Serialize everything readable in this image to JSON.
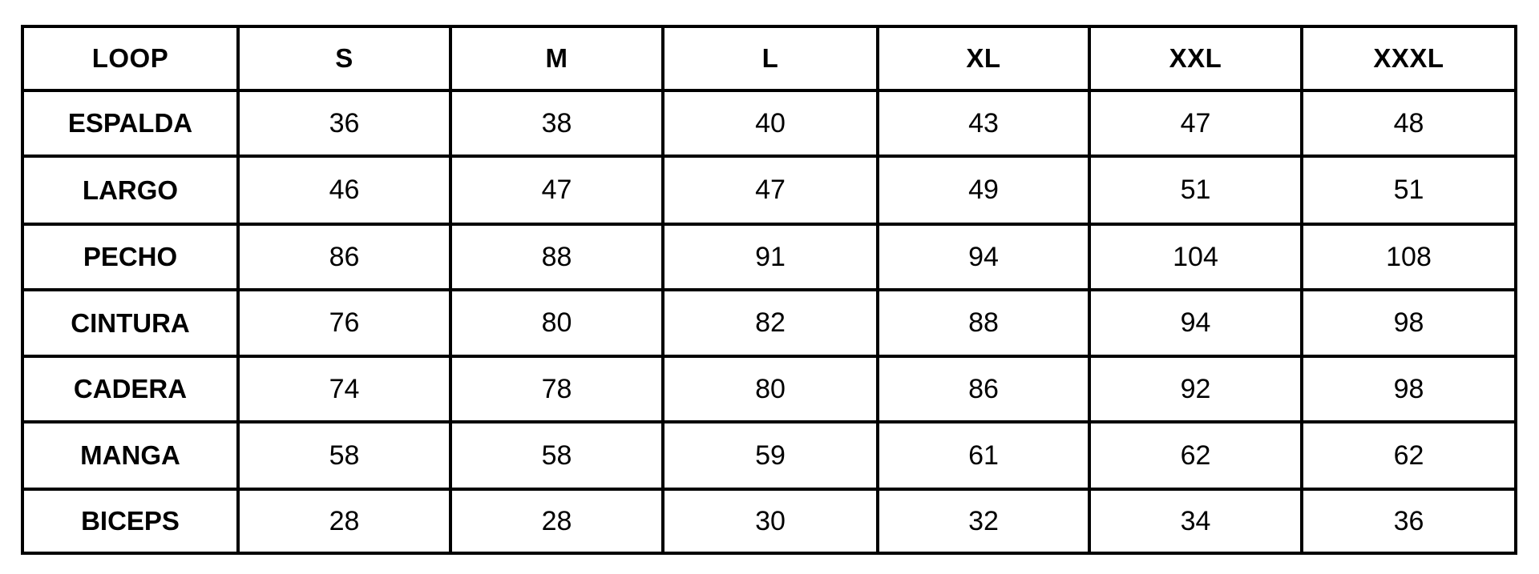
{
  "table": {
    "headers": [
      "LOOP",
      "S",
      "M",
      "L",
      "XL",
      "XXL",
      "XXXL"
    ],
    "rows": [
      {
        "label": "ESPALDA",
        "values": [
          "36",
          "38",
          "40",
          "43",
          "47",
          "48"
        ]
      },
      {
        "label": "LARGO",
        "values": [
          "46",
          "47",
          "47",
          "49",
          "51",
          "51"
        ]
      },
      {
        "label": "PECHO",
        "values": [
          "86",
          "88",
          "91",
          "94",
          "104",
          "108"
        ]
      },
      {
        "label": "CINTURA",
        "values": [
          "76",
          "80",
          "82",
          "88",
          "94",
          "98"
        ]
      },
      {
        "label": "CADERA",
        "values": [
          "74",
          "78",
          "80",
          "86",
          "92",
          "98"
        ]
      },
      {
        "label": "MANGA",
        "values": [
          "58",
          "58",
          "59",
          "61",
          "62",
          "62"
        ]
      },
      {
        "label": "BICEPS",
        "values": [
          "28",
          "28",
          "30",
          "32",
          "34",
          "36"
        ]
      }
    ]
  }
}
